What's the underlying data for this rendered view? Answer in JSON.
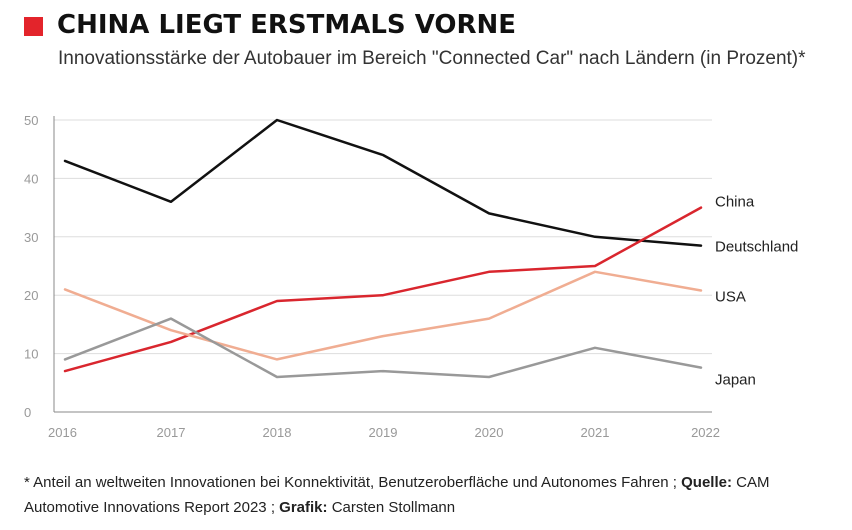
{
  "title": "CHINA LIEGT ERSTMALS VORNE",
  "subtitle": "Innovationsstärke der Autobauer im Bereich \"Connected Car\" nach Ländern (in Prozent)*",
  "footnote": {
    "note": "* Anteil an weltweiten Innovationen bei Konnektivität, Benutzeroberfläche und Autonomes Fahren ;",
    "source_label": "Quelle:",
    "source_text": "CAM Automotive Innovations Report 2023 ;",
    "credit_label": "Grafik:",
    "credit_text": "Carsten Stollmann"
  },
  "colors": {
    "accent": "#e3242b",
    "deutschland": "#111111",
    "china": "#d9262e",
    "usa": "#f0ad92",
    "japan": "#999999",
    "grid": "#dddddd",
    "axis": "#888888",
    "tick": "#999999"
  },
  "chart_data": {
    "type": "line",
    "x": [
      "2016",
      "2017",
      "2018",
      "2019",
      "2020",
      "2021",
      "2022"
    ],
    "ylim": [
      0,
      50
    ],
    "yticks": [
      0,
      10,
      20,
      30,
      40,
      50
    ],
    "grid": true,
    "series": [
      {
        "name": "Deutschland",
        "color_key": "deutschland",
        "values": [
          43,
          36,
          50,
          44,
          34,
          30,
          28.5
        ]
      },
      {
        "name": "China",
        "color_key": "china",
        "values": [
          7,
          12,
          19,
          20,
          24,
          25,
          35
        ]
      },
      {
        "name": "USA",
        "color_key": "usa",
        "values": [
          21,
          14,
          9,
          13,
          16,
          24,
          20.8
        ]
      },
      {
        "name": "Japan",
        "color_key": "japan",
        "values": [
          9,
          16,
          6,
          7,
          6,
          11,
          7.6
        ]
      }
    ]
  }
}
